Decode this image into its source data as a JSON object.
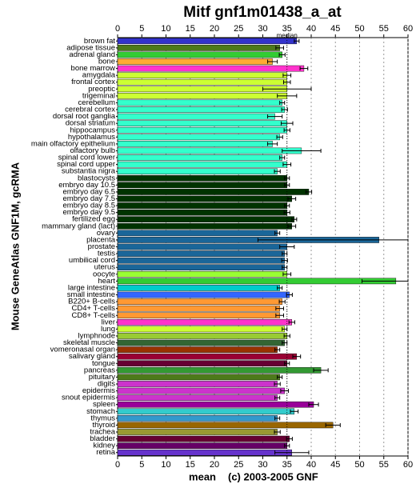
{
  "chart_data": {
    "type": "bar",
    "orientation": "horizontal",
    "title": "Mitf gnf1m01438_a_at",
    "y_label": "Mouse GeneAtlas GNF1M, gcRMA",
    "x_label": "mean",
    "footer": "(c) 2003-2005 GNF",
    "reference_line": {
      "value": 35,
      "label": "median"
    },
    "categories": [
      "brown fat",
      "adipose tissue",
      "adrenal gland",
      "bone",
      "bone marrow",
      "amygdala",
      "frontal cortex",
      "preoptic",
      "trigeminal",
      "cerebellum",
      "cerebral cortex",
      "dorsal root ganglia",
      "dorsal striatum",
      "hippocampus",
      "hypothalamus",
      "main olfactory epithelium",
      "olfactory bulb",
      "spinal cord lower",
      "spinal cord upper",
      "substantia nigra",
      "blastocysts",
      "embryo day 10.5",
      "embryo day 6.5",
      "embryo day 7.5",
      "embryo day 8.5",
      "embryo day 9.5",
      "fertilized egg",
      "mammary gland (lact)",
      "ovary",
      "placenta",
      "prostate",
      "testis",
      "umbilical cord",
      "uterus",
      "oocyte",
      "heart",
      "large intestine",
      "small intestine",
      "B220+ B-cells",
      "CD4+ T-cells",
      "CD8+ T-cells",
      "liver",
      "lung",
      "lymphnode",
      "skeletal muscle",
      "vomeronasal organ",
      "salivary gland",
      "tongue",
      "pancreas",
      "pituitary",
      "digits",
      "epidermis",
      "snout epidermis",
      "spleen",
      "stomach",
      "thymus",
      "thyroid",
      "trachea",
      "bladder",
      "kidney",
      "retina"
    ],
    "values": [
      37,
      33.5,
      34,
      32,
      38.5,
      35,
      35,
      35,
      35,
      34,
      34.5,
      32.5,
      35,
      35,
      33.5,
      32,
      38,
      34,
      35,
      33,
      35,
      35,
      39.5,
      36,
      35,
      35,
      36.5,
      36,
      33,
      54,
      35,
      34.5,
      34.5,
      34.5,
      35,
      57.5,
      33.5,
      35.5,
      34,
      33.5,
      33.5,
      36,
      34.5,
      35,
      34.5,
      33,
      37,
      35,
      42,
      33.5,
      33,
      34.5,
      33,
      40.5,
      36.5,
      33,
      44.5,
      33,
      35.5,
      35,
      36
    ],
    "errors": [
      0.5,
      0.8,
      0.6,
      1,
      0.8,
      0.8,
      0.7,
      5,
      2,
      0.5,
      0.6,
      1.5,
      1.2,
      0.6,
      0.6,
      1,
      4,
      0.5,
      0.8,
      0.6,
      0.5,
      0.5,
      0.6,
      0.8,
      0.5,
      0.6,
      0.5,
      0.8,
      0.5,
      25,
      1.5,
      0.5,
      0.6,
      0.5,
      0.8,
      7,
      0.5,
      0.6,
      0.6,
      0.8,
      0.8,
      0.6,
      0.5,
      0.6,
      0.5,
      0.5,
      0.8,
      0.5,
      1.5,
      0.5,
      0.6,
      0.8,
      0.5,
      1,
      0.8,
      0.5,
      1.5,
      0.6,
      0.6,
      0.5,
      3.5
    ],
    "colors": [
      "#3333cc",
      "#4d7a1a",
      "#33cc33",
      "#ffaa33",
      "#ff33cc",
      "#ccff33",
      "#ccff33",
      "#ccff33",
      "#ccff33",
      "#33ffcc",
      "#33ffcc",
      "#33ffcc",
      "#33ffcc",
      "#33ffcc",
      "#33ffcc",
      "#33ffcc",
      "#33ffcc",
      "#33ffcc",
      "#33ffcc",
      "#33ffcc",
      "#003300",
      "#003300",
      "#003300",
      "#003300",
      "#003300",
      "#003300",
      "#003300",
      "#003300",
      "#1a6699",
      "#1a6699",
      "#1a6699",
      "#1a6699",
      "#1a6699",
      "#1a6699",
      "#99ff33",
      "#33cc33",
      "#00cccc",
      "#3366ff",
      "#ff9933",
      "#ff9933",
      "#ff9933",
      "#ff33cc",
      "#ccff33",
      "#99cc33",
      "#336633",
      "#993300",
      "#990033",
      "#660033",
      "#339933",
      "#4d7a1a",
      "#cc33cc",
      "#cc33cc",
      "#cc33cc",
      "#990099",
      "#33cccc",
      "#3399cc",
      "#996600",
      "#999933",
      "#660033",
      "#660066",
      "#6633cc"
    ],
    "xlim": [
      0,
      60
    ],
    "xticks": [
      0,
      5,
      10,
      15,
      20,
      25,
      30,
      35,
      40,
      45,
      50,
      55,
      60
    ],
    "grid": true
  }
}
